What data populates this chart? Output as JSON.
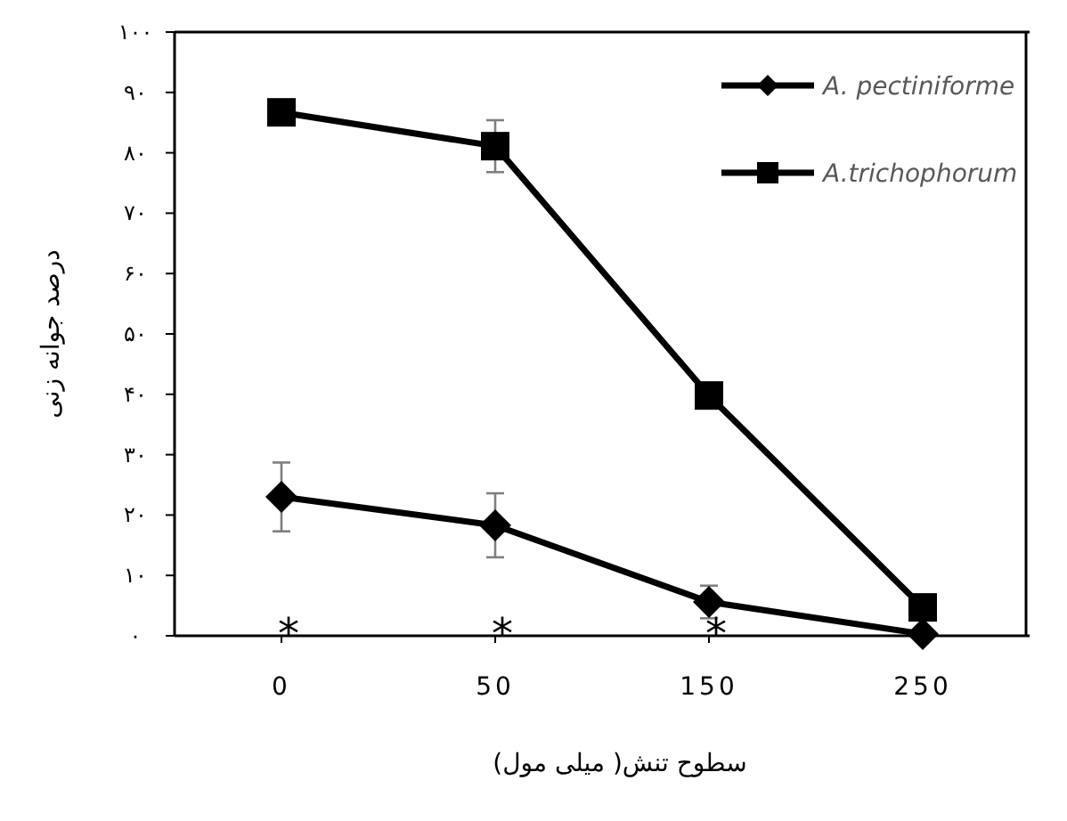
{
  "chart_data": {
    "type": "line",
    "xlabel": "سطوح تنش( میلی مول)",
    "ylabel": "درصد جوانه زنی",
    "categories": [
      "0",
      "50",
      "150",
      "250"
    ],
    "ylim": [
      0,
      100
    ],
    "yticks": [
      {
        "value": 0,
        "label": "۰"
      },
      {
        "value": 10,
        "label": "۱۰"
      },
      {
        "value": 20,
        "label": "۲۰"
      },
      {
        "value": 30,
        "label": "۳۰"
      },
      {
        "value": 40,
        "label": "۴۰"
      },
      {
        "value": 50,
        "label": "۵۰"
      },
      {
        "value": 60,
        "label": "۶۰"
      },
      {
        "value": 70,
        "label": "۷۰"
      },
      {
        "value": 80,
        "label": "۸۰"
      },
      {
        "value": 90,
        "label": "۹۰"
      },
      {
        "value": 100,
        "label": "۱۰۰"
      }
    ],
    "series": [
      {
        "name": "A. pectiniforme",
        "color": "#000000",
        "marker": "diamond",
        "values": [
          23.0,
          18.3,
          5.6,
          0.3
        ],
        "errors": [
          5.7,
          5.3,
          2.7,
          null
        ]
      },
      {
        "name": "A.trichophorum",
        "color": "#000000",
        "marker": "square",
        "values": [
          86.7,
          81.1,
          39.8,
          4.7
        ],
        "errors": [
          null,
          4.3,
          null,
          null
        ]
      }
    ],
    "annotations": [
      "*",
      "*",
      "*"
    ],
    "legend": "top right",
    "grid": false,
    "line_style": "solid"
  }
}
